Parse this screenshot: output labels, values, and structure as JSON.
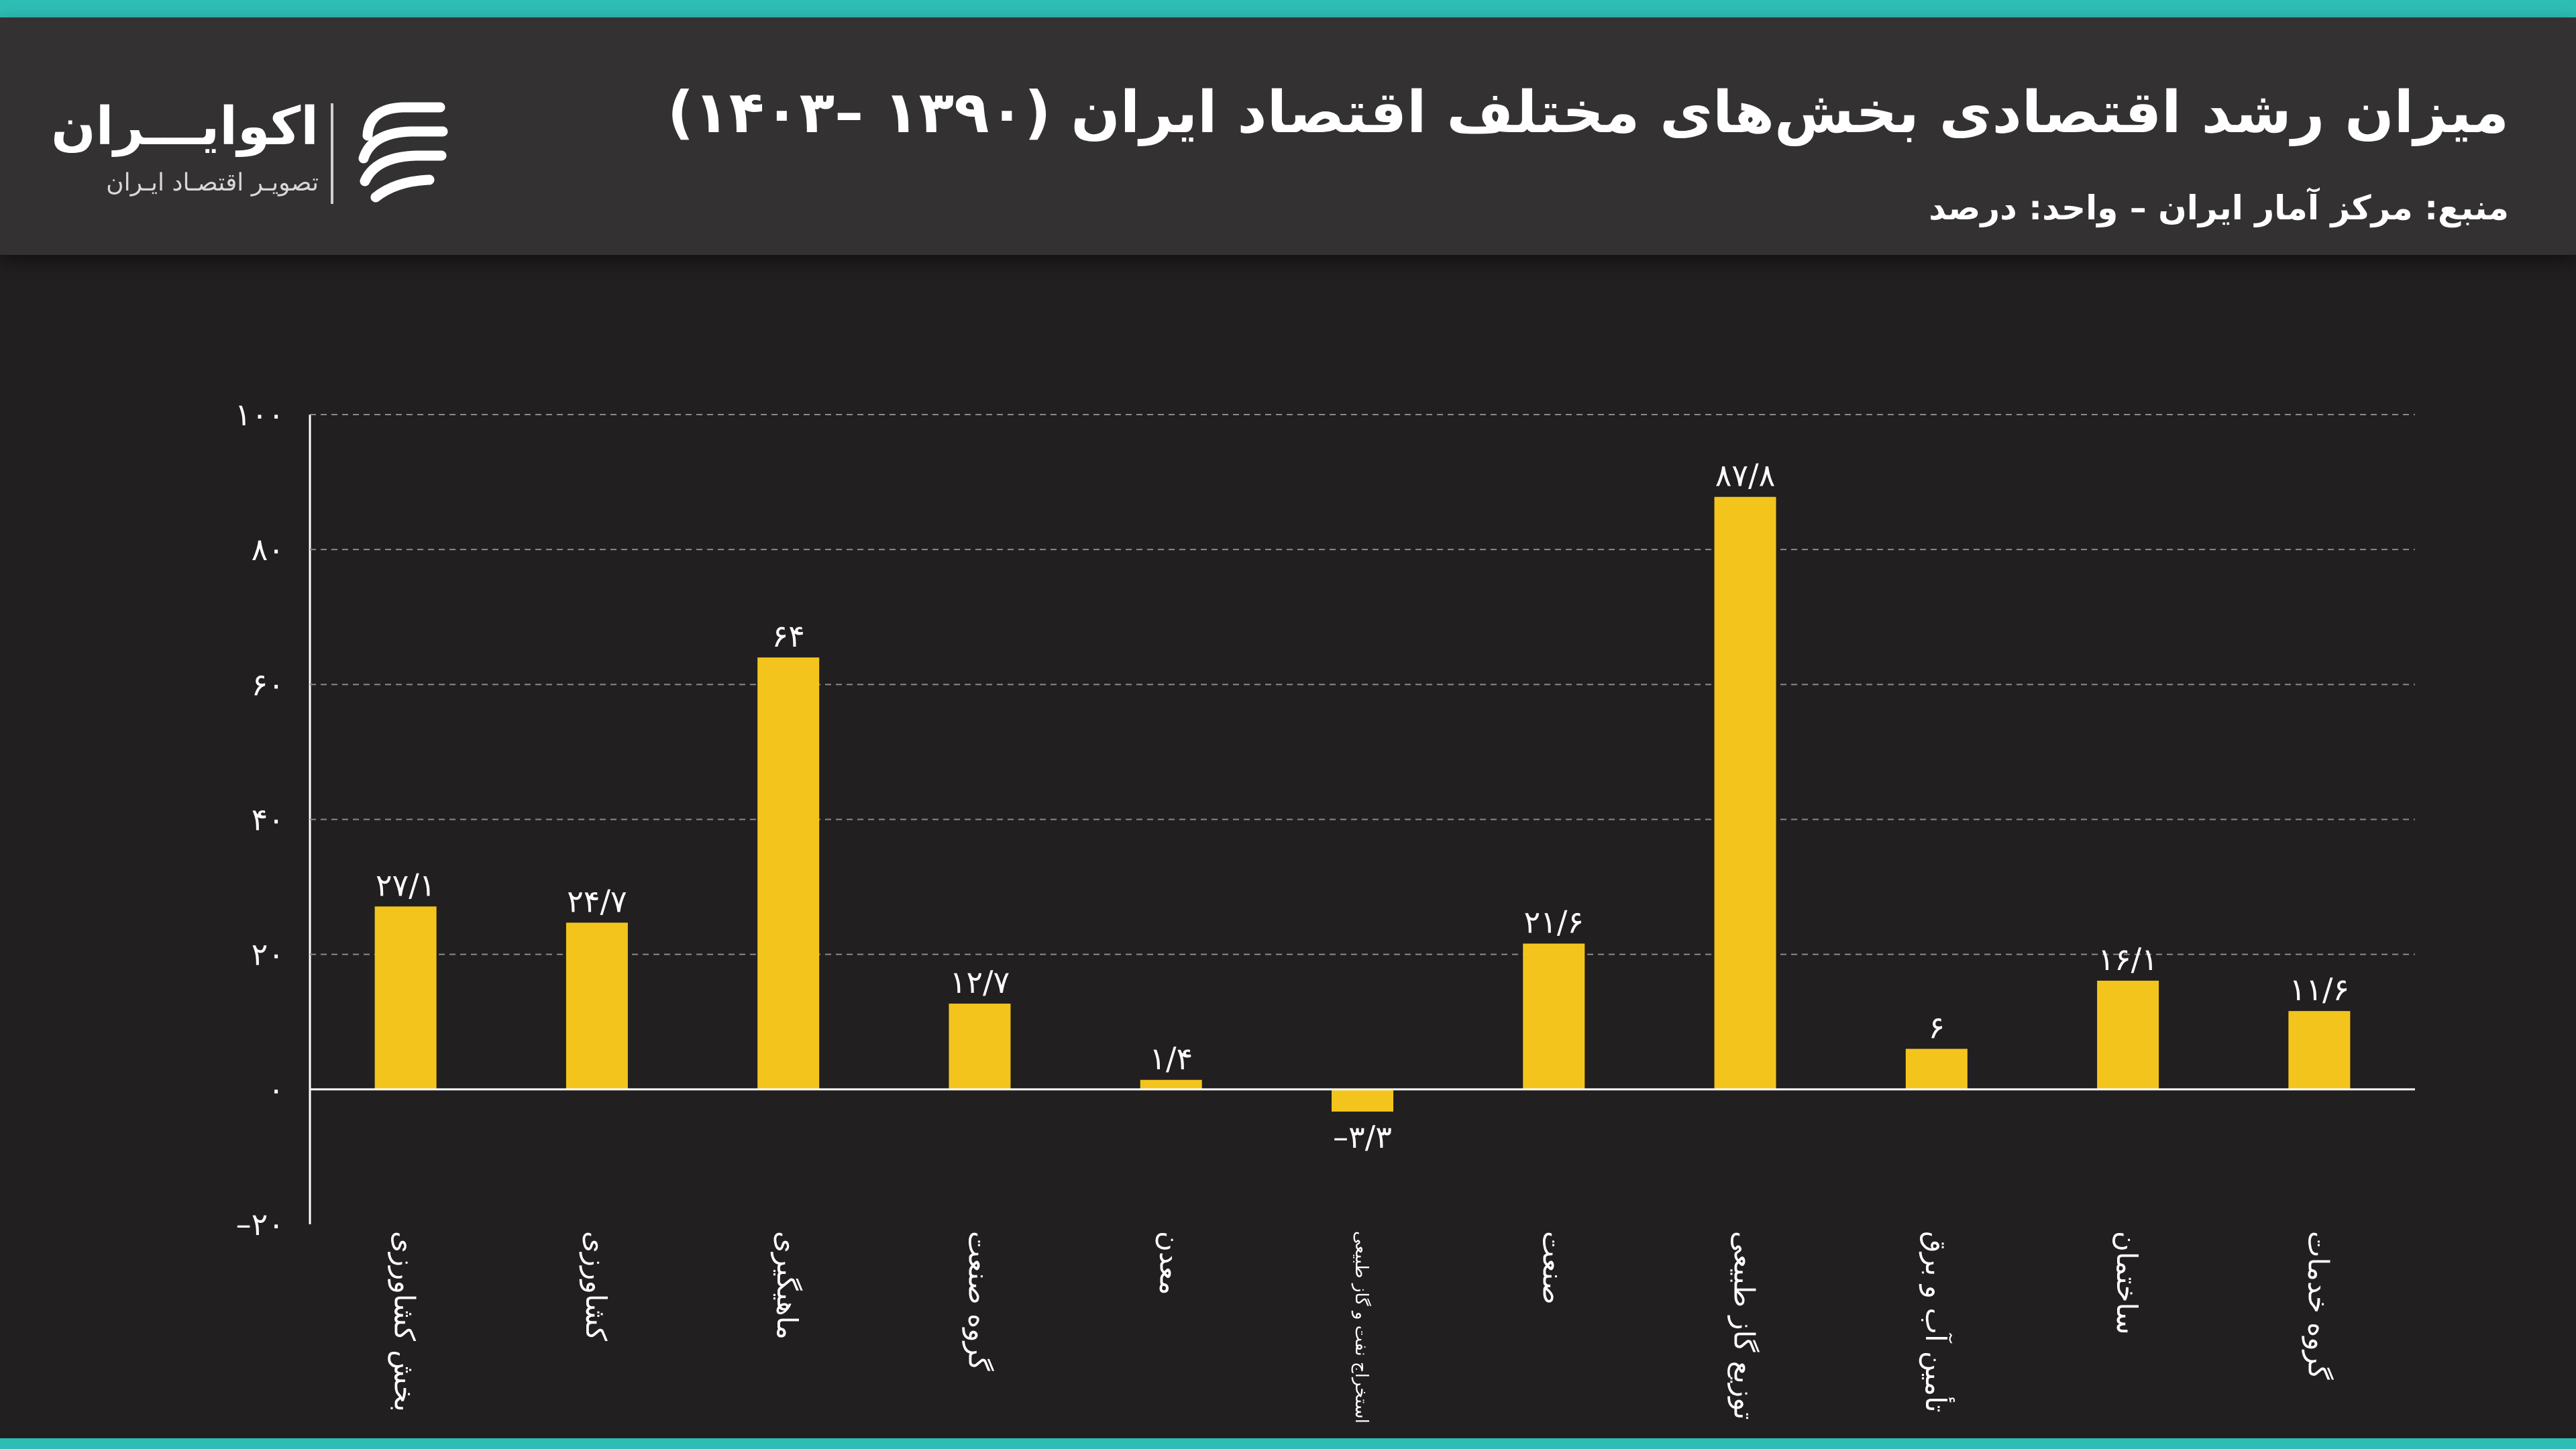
{
  "header": {
    "title": "میزان رشد اقتصادی بخش‌های مختلف اقتصاد ایران (۱۳۹۰ –۱۴۰۳)",
    "subtitle": "منبع: مرکز آمار ایران – واحد: درصد"
  },
  "logo": {
    "name": "اکوایـــران",
    "tagline": "تصویـر اقتصـاد ایـران"
  },
  "colors": {
    "accent_strip": "#2ebdb4",
    "bar": "#f3c51c",
    "background": "#221f20",
    "header": "#333132",
    "grid": "#8a8a8a",
    "text": "#ffffff"
  },
  "chart_data": {
    "type": "bar",
    "title": "میزان رشد اقتصادی بخش‌های مختلف اقتصاد ایران (۱۳۹۰ –۱۴۰۳)",
    "xlabel": "",
    "ylabel": "",
    "ylim": [
      -20,
      100
    ],
    "yticks": [
      -20,
      0,
      20,
      40,
      60,
      80,
      100
    ],
    "ytick_labels": [
      "–۲۰",
      "۰",
      "۲۰",
      "۴۰",
      "۶۰",
      "۸۰",
      "۱۰۰"
    ],
    "grid": true,
    "categories": [
      "بخش کشاورزی",
      "کشاورزی",
      "ماهیگیری",
      "گروه صنعت",
      "معدن",
      "استخراج نفت و گاز طبیعی",
      "صنعت",
      "توزیع گاز طبیعی",
      "تأمین آب و برق",
      "ساختمان",
      "گروه خدمات"
    ],
    "values": [
      27.1,
      24.7,
      64,
      12.7,
      1.4,
      -3.3,
      21.6,
      87.8,
      6,
      16.1,
      11.6
    ],
    "value_labels": [
      "۲۷/۱",
      "۲۴/۷",
      "۶۴",
      "۱۲/۷",
      "۱/۴",
      "–۳/۳",
      "۲۱/۶",
      "۸۷/۸",
      "۶",
      "۱۶/۱",
      "۱۱/۶"
    ]
  }
}
